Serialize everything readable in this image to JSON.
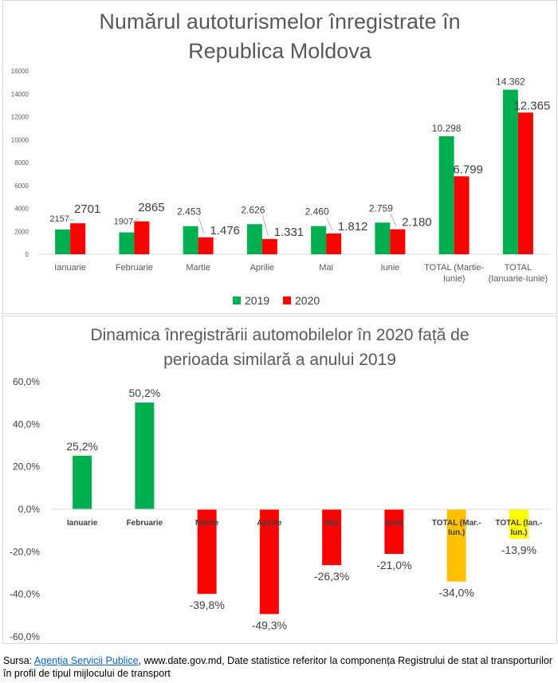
{
  "chart_data": [
    {
      "type": "bar",
      "title": "Numărul autoturismelor înregistrate în Republica Moldova",
      "title_lines": [
        "Numărul autoturismelor înregistrate în",
        "Republica Moldova"
      ],
      "categories": [
        [
          "Ianuarie"
        ],
        [
          "Februarie"
        ],
        [
          "Martie"
        ],
        [
          "Aprilie"
        ],
        [
          "Mai"
        ],
        [
          "Iunie"
        ],
        [
          "TOTAL (Martie-",
          "Iunie)"
        ],
        [
          "TOTAL",
          "(Ianuarie-Iunie)"
        ]
      ],
      "series": [
        {
          "name": "2019",
          "color": "#00b050",
          "values": [
            2157,
            1907,
            2453,
            2626,
            2460,
            2759,
            10298,
            14362
          ],
          "labels": [
            "2157",
            "1907",
            "2.453",
            "2.626",
            "2.460",
            "2.759",
            "10.298",
            "14.362"
          ]
        },
        {
          "name": "2020",
          "color": "#ff0000",
          "values": [
            2701,
            2865,
            1476,
            1331,
            1812,
            2180,
            6799,
            12365
          ],
          "labels": [
            "2701",
            "2865",
            "1.476",
            "1.331",
            "1.812",
            "2.180",
            "6.799",
            "12.365"
          ]
        }
      ],
      "ylim": [
        0,
        16000
      ],
      "yticks": [
        "0",
        "2000",
        "4000",
        "6000",
        "8000",
        "10000",
        "12000",
        "14000",
        "16000"
      ],
      "legend_position": "bottom",
      "grid": false
    },
    {
      "type": "bar",
      "title": "Dinamica înregistrării automobilelor în 2020 față de perioada similară a anului 2019",
      "title_lines": [
        "Dinamica înregistrării automobilelor în 2020 față de",
        "perioada similară a anului 2019"
      ],
      "categories": [
        [
          "Ianuarie"
        ],
        [
          "Februarie"
        ],
        [
          "Martie"
        ],
        [
          "Aprilie"
        ],
        [
          "Mai"
        ],
        [
          "Iunie"
        ],
        [
          "TOTAL (Mar.-",
          "Iun.)"
        ],
        [
          "TOTAL (Ian.-",
          "Iun.)"
        ]
      ],
      "values": [
        25.2,
        50.2,
        -39.8,
        -49.3,
        -26.3,
        -21.0,
        -34.0,
        -13.9
      ],
      "labels": [
        "25,2%",
        "50,2%",
        "-39,8%",
        "-49,3%",
        "-26,3%",
        "-21,0%",
        "-34,0%",
        "-13,9%"
      ],
      "colors": [
        "#00b050",
        "#00b050",
        "#ff0000",
        "#ff0000",
        "#ff0000",
        "#ff0000",
        "#ffc000",
        "#ffff00"
      ],
      "ylim": [
        -60,
        60
      ],
      "yticks": [
        "-60,0%",
        "-40,0%",
        "-20,0%",
        "0,0%",
        "20,0%",
        "40,0%",
        "60,0%"
      ],
      "grid": false
    }
  ],
  "source": {
    "prefix": "Sursa: ",
    "link": "Agenția Servicii Publice",
    "rest": ", www.date.gov.md, Date statistice referitor la componența Registrului de stat al transporturilor în profil de tipul mijlocului de transport"
  }
}
